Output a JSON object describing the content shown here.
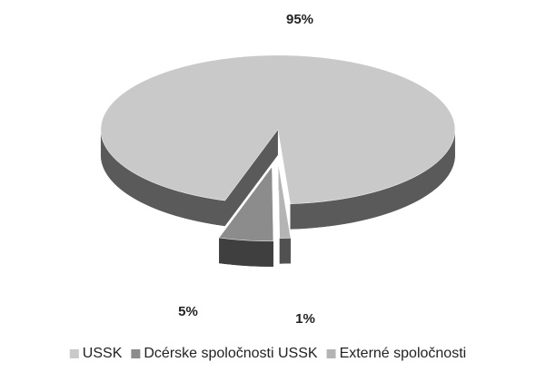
{
  "chart_data": {
    "type": "pie",
    "categories": [
      "USSK",
      "Dcérske spoločnosti USSK",
      "Externé spoločnosti"
    ],
    "values": [
      95,
      5,
      1
    ],
    "value_labels": [
      "95%",
      "5%",
      "1%"
    ],
    "colors": [
      "#c9c9c9",
      "#8c8c8c",
      "#b4b4b4"
    ],
    "legend": "bottom"
  }
}
